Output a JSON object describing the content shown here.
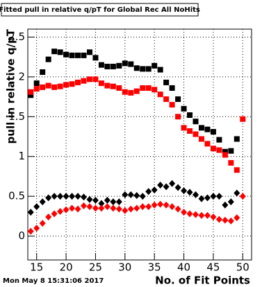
{
  "chart_data": {
    "type": "scatter",
    "title": "Fitted pull in relative q/pT for Global Rec All NoHits",
    "timestamp": "Mon May  8 15:31:06 2017",
    "x_label": "No. of Fit Points",
    "y_label": "pull in relative q/pT",
    "x": [
      14,
      15,
      16,
      17,
      18,
      19,
      20,
      21,
      22,
      23,
      24,
      25,
      26,
      27,
      28,
      29,
      30,
      31,
      32,
      33,
      34,
      35,
      36,
      37,
      38,
      39,
      40,
      41,
      42,
      43,
      44,
      45,
      46,
      47,
      48,
      49,
      50
    ],
    "series": [
      {
        "color": "#000000",
        "marker": "square",
        "values": [
          1.77,
          1.92,
          2.06,
          2.22,
          2.32,
          2.31,
          2.28,
          2.27,
          2.27,
          2.27,
          2.31,
          2.24,
          2.15,
          2.13,
          2.13,
          2.14,
          2.17,
          2.16,
          2.11,
          2.1,
          2.1,
          2.14,
          2.09,
          1.93,
          1.86,
          1.72,
          1.6,
          1.52,
          1.44,
          1.36,
          1.34,
          1.31,
          1.21,
          1.06,
          1.07,
          1.22,
          null
        ]
      },
      {
        "color": "#ff0000",
        "marker": "square",
        "values": [
          1.81,
          1.85,
          1.87,
          1.89,
          1.87,
          1.88,
          1.9,
          1.91,
          1.93,
          1.95,
          1.97,
          1.97,
          1.92,
          1.89,
          1.88,
          1.86,
          1.81,
          1.8,
          1.82,
          1.86,
          1.86,
          1.84,
          1.78,
          1.72,
          1.65,
          1.5,
          1.36,
          1.32,
          1.28,
          1.22,
          1.16,
          1.1,
          1.08,
          1.02,
          0.92,
          0.83,
          1.47
        ]
      },
      {
        "color": "#000000",
        "marker": "diamond",
        "values": [
          0.3,
          0.37,
          0.43,
          0.48,
          0.5,
          0.5,
          0.5,
          0.5,
          0.5,
          0.49,
          0.46,
          0.45,
          0.41,
          0.45,
          0.43,
          0.43,
          0.52,
          0.52,
          0.51,
          0.5,
          0.56,
          0.58,
          0.64,
          0.62,
          0.66,
          0.61,
          0.57,
          0.55,
          0.52,
          0.47,
          0.48,
          0.5,
          0.5,
          0.39,
          0.43,
          0.54,
          null
        ]
      },
      {
        "color": "#ff0000",
        "marker": "diamond",
        "values": [
          0.06,
          0.1,
          0.16,
          0.24,
          0.28,
          0.31,
          0.33,
          0.35,
          0.34,
          0.38,
          0.37,
          0.35,
          0.35,
          0.37,
          0.35,
          0.34,
          0.32,
          0.34,
          0.35,
          0.37,
          0.37,
          0.39,
          0.4,
          0.39,
          0.37,
          0.34,
          0.3,
          0.28,
          0.27,
          0.26,
          0.26,
          0.24,
          0.21,
          0.2,
          0.19,
          0.23,
          0.5
        ]
      }
    ],
    "xlim": [
      13.5,
      51.5
    ],
    "ylim": [
      -0.3,
      2.6
    ],
    "xticks": [
      15,
      20,
      25,
      30,
      35,
      40,
      45,
      50
    ],
    "yticks": [
      0,
      0.5,
      1,
      1.5,
      2,
      2.5
    ],
    "grid": true
  }
}
